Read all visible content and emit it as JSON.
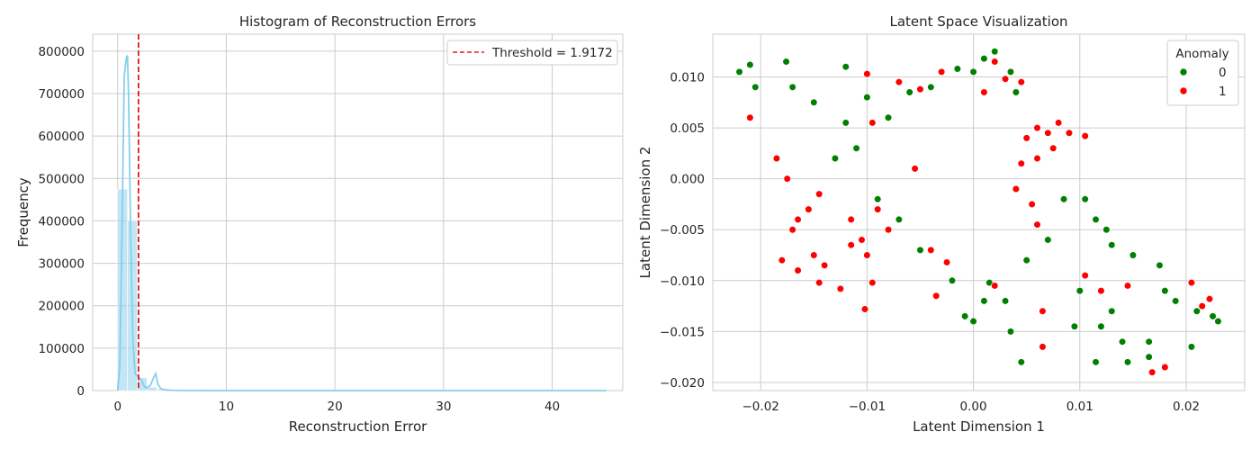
{
  "chart_data": [
    {
      "type": "bar",
      "title": "Histogram of Reconstruction Errors",
      "xlabel": "Reconstruction Error",
      "ylabel": "Frequency",
      "xlim": [
        -2.3,
        46.5
      ],
      "ylim": [
        0,
        840000
      ],
      "xticks": [
        0,
        10,
        20,
        30,
        40
      ],
      "yticks": [
        0,
        100000,
        200000,
        300000,
        400000,
        500000,
        600000,
        700000,
        800000
      ],
      "bins": [
        {
          "x0": 0.0,
          "x1": 0.9,
          "count": 475000
        },
        {
          "x0": 0.9,
          "x1": 1.8,
          "count": 400000
        },
        {
          "x0": 1.8,
          "x1": 2.7,
          "count": 30000
        },
        {
          "x0": 2.7,
          "x1": 3.6,
          "count": 8000
        },
        {
          "x0": 3.6,
          "x1": 4.5,
          "count": 4000
        }
      ],
      "kde": {
        "x": [
          0.0,
          0.2,
          0.4,
          0.6,
          0.8,
          0.9,
          1.0,
          1.2,
          1.4,
          1.6,
          1.8,
          2.0,
          2.2,
          2.4,
          2.6,
          3.0,
          3.3,
          3.5,
          3.7,
          4.0,
          4.5,
          5.0,
          6.0,
          8.0,
          10.0,
          45.0
        ],
        "y": [
          0,
          60000,
          380000,
          740000,
          785000,
          790000,
          700000,
          360000,
          120000,
          40000,
          35000,
          30000,
          25000,
          12000,
          6000,
          12000,
          30000,
          40000,
          15000,
          4000,
          1500,
          800,
          200,
          0,
          0,
          0
        ]
      },
      "threshold": {
        "value": 1.9172,
        "label": "Threshold = 1.9172",
        "color": "#e41a1c"
      },
      "grid": true,
      "legend_position": "top-right",
      "colors": {
        "bars": "#87ceeb",
        "kde": "#87ceeb"
      }
    },
    {
      "type": "scatter",
      "title": "Latent Space Visualization",
      "xlabel": "Latent Dimension 1",
      "ylabel": "Latent Dimension 2",
      "xlim": [
        -0.0245,
        0.0255
      ],
      "ylim": [
        -0.0208,
        0.0142
      ],
      "xticks": [
        -0.02,
        -0.01,
        0.0,
        0.01,
        0.02
      ],
      "yticks": [
        -0.02,
        -0.015,
        -0.01,
        -0.005,
        0.0,
        0.005,
        0.01
      ],
      "grid": true,
      "legend_position": "top-right",
      "legend_title": "Anomaly",
      "series": [
        {
          "name": "0",
          "color": "#008000",
          "points": [
            [
              -0.022,
              0.0105
            ],
            [
              -0.021,
              0.0112
            ],
            [
              -0.0205,
              0.009
            ],
            [
              -0.0176,
              0.0115
            ],
            [
              -0.017,
              0.009
            ],
            [
              -0.015,
              0.0075
            ],
            [
              -0.012,
              0.011
            ],
            [
              -0.012,
              0.0055
            ],
            [
              -0.01,
              0.008
            ],
            [
              -0.008,
              0.006
            ],
            [
              -0.006,
              0.0085
            ],
            [
              -0.004,
              0.009
            ],
            [
              -0.0015,
              0.0108
            ],
            [
              0.0,
              0.0105
            ],
            [
              0.001,
              0.0118
            ],
            [
              0.002,
              0.0125
            ],
            [
              0.0035,
              0.0105
            ],
            [
              0.004,
              0.0085
            ],
            [
              -0.013,
              0.002
            ],
            [
              -0.011,
              0.003
            ],
            [
              -0.009,
              -0.002
            ],
            [
              -0.007,
              -0.004
            ],
            [
              -0.005,
              -0.007
            ],
            [
              -0.002,
              -0.01
            ],
            [
              0.001,
              -0.012
            ],
            [
              0.003,
              -0.012
            ],
            [
              0.0045,
              -0.018
            ],
            [
              0.0035,
              -0.015
            ],
            [
              0.005,
              -0.008
            ],
            [
              0.007,
              -0.006
            ],
            [
              0.01,
              -0.011
            ],
            [
              0.0115,
              -0.018
            ],
            [
              0.013,
              -0.013
            ],
            [
              0.014,
              -0.016
            ],
            [
              0.0145,
              -0.018
            ],
            [
              0.0165,
              -0.016
            ],
            [
              0.0175,
              -0.0085
            ],
            [
              0.018,
              -0.011
            ],
            [
              0.019,
              -0.012
            ],
            [
              0.0205,
              -0.0165
            ],
            [
              0.021,
              -0.013
            ],
            [
              0.0225,
              -0.0135
            ],
            [
              0.023,
              -0.014
            ],
            [
              0.0085,
              -0.002
            ],
            [
              0.0105,
              -0.002
            ],
            [
              0.0115,
              -0.004
            ],
            [
              0.0125,
              -0.005
            ],
            [
              0.013,
              -0.0065
            ],
            [
              0.015,
              -0.0075
            ],
            [
              0.0095,
              -0.0145
            ],
            [
              0.012,
              -0.0145
            ],
            [
              0.0165,
              -0.0175
            ],
            [
              0.0015,
              -0.0102
            ],
            [
              -0.0008,
              -0.0135
            ],
            [
              0.0,
              -0.014
            ]
          ]
        },
        {
          "name": "1",
          "color": "#ff0000",
          "points": [
            [
              -0.021,
              0.006
            ],
            [
              -0.0185,
              0.002
            ],
            [
              -0.0175,
              0.0
            ],
            [
              -0.017,
              -0.005
            ],
            [
              -0.018,
              -0.008
            ],
            [
              -0.0165,
              -0.009
            ],
            [
              -0.015,
              -0.0075
            ],
            [
              -0.014,
              -0.0085
            ],
            [
              -0.0145,
              -0.0102
            ],
            [
              -0.0125,
              -0.0108
            ],
            [
              -0.0102,
              -0.0128
            ],
            [
              -0.0095,
              -0.0102
            ],
            [
              -0.0165,
              -0.004
            ],
            [
              -0.0155,
              -0.003
            ],
            [
              -0.0145,
              -0.0015
            ],
            [
              -0.0115,
              -0.004
            ],
            [
              -0.0105,
              -0.006
            ],
            [
              -0.01,
              -0.0075
            ],
            [
              -0.009,
              -0.003
            ],
            [
              -0.008,
              -0.005
            ],
            [
              -0.0115,
              -0.0065
            ],
            [
              -0.01,
              0.0103
            ],
            [
              -0.007,
              0.0095
            ],
            [
              -0.005,
              0.0088
            ],
            [
              -0.003,
              0.0105
            ],
            [
              -0.0095,
              0.0055
            ],
            [
              -0.0055,
              0.001
            ],
            [
              -0.004,
              -0.007
            ],
            [
              -0.0035,
              -0.0115
            ],
            [
              -0.0025,
              -0.0082
            ],
            [
              0.001,
              0.0085
            ],
            [
              0.002,
              0.0115
            ],
            [
              0.003,
              0.0098
            ],
            [
              0.0045,
              0.0095
            ],
            [
              0.005,
              0.004
            ],
            [
              0.006,
              0.005
            ],
            [
              0.007,
              0.0045
            ],
            [
              0.008,
              0.0055
            ],
            [
              0.009,
              0.0045
            ],
            [
              0.0105,
              0.0042
            ],
            [
              0.0075,
              0.003
            ],
            [
              0.006,
              0.002
            ],
            [
              0.0045,
              0.0015
            ],
            [
              0.004,
              -0.001
            ],
            [
              0.0055,
              -0.0025
            ],
            [
              0.006,
              -0.0045
            ],
            [
              0.0065,
              -0.013
            ],
            [
              0.0065,
              -0.0165
            ],
            [
              0.0105,
              -0.0095
            ],
            [
              0.012,
              -0.011
            ],
            [
              0.0145,
              -0.0105
            ],
            [
              0.0168,
              -0.019
            ],
            [
              0.018,
              -0.0185
            ],
            [
              0.0205,
              -0.0102
            ],
            [
              0.0215,
              -0.0125
            ],
            [
              0.0222,
              -0.0118
            ],
            [
              0.002,
              -0.0105
            ]
          ]
        }
      ]
    }
  ]
}
